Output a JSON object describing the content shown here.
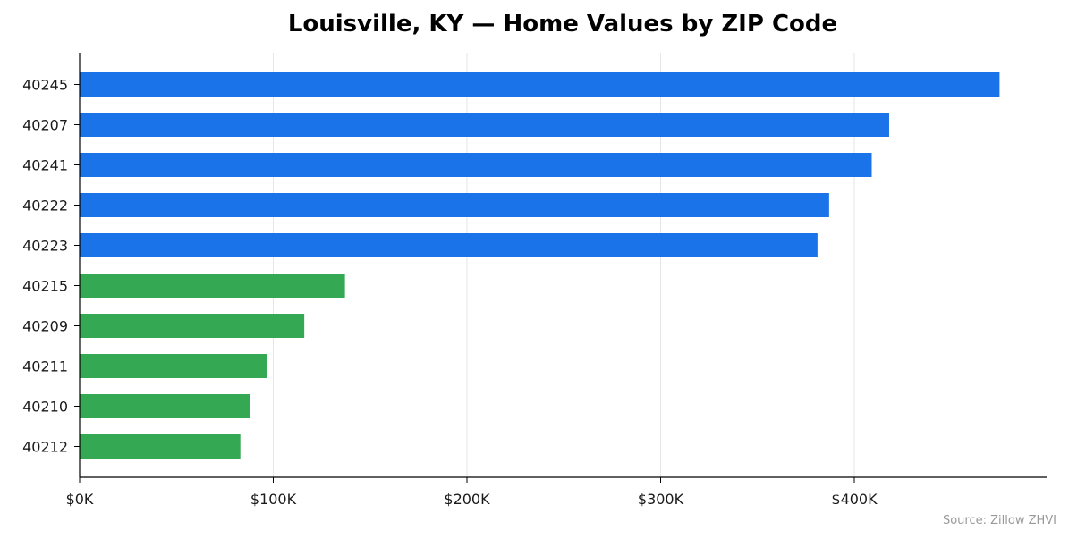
{
  "chart_data": {
    "type": "bar",
    "orientation": "horizontal",
    "title": "Louisville, KY — Home Values by ZIP Code",
    "xlabel": "",
    "ylabel": "",
    "categories": [
      "40245",
      "40207",
      "40241",
      "40222",
      "40223",
      "40215",
      "40209",
      "40211",
      "40210",
      "40212"
    ],
    "values": [
      475000,
      418000,
      409000,
      387000,
      381000,
      137000,
      116000,
      97000,
      88000,
      83000
    ],
    "bar_colors": [
      "#1a73e8",
      "#1a73e8",
      "#1a73e8",
      "#1a73e8",
      "#1a73e8",
      "#34a853",
      "#34a853",
      "#34a853",
      "#34a853",
      "#34a853"
    ],
    "xlim": [
      0,
      500000
    ],
    "x_ticks": [
      0,
      100000,
      200000,
      300000,
      400000
    ],
    "x_tick_labels": [
      "$0K",
      "$100K",
      "$200K",
      "$300K",
      "$400K"
    ],
    "grid": "vertical",
    "legend": "none",
    "source": "Source: Zillow ZHVI"
  }
}
